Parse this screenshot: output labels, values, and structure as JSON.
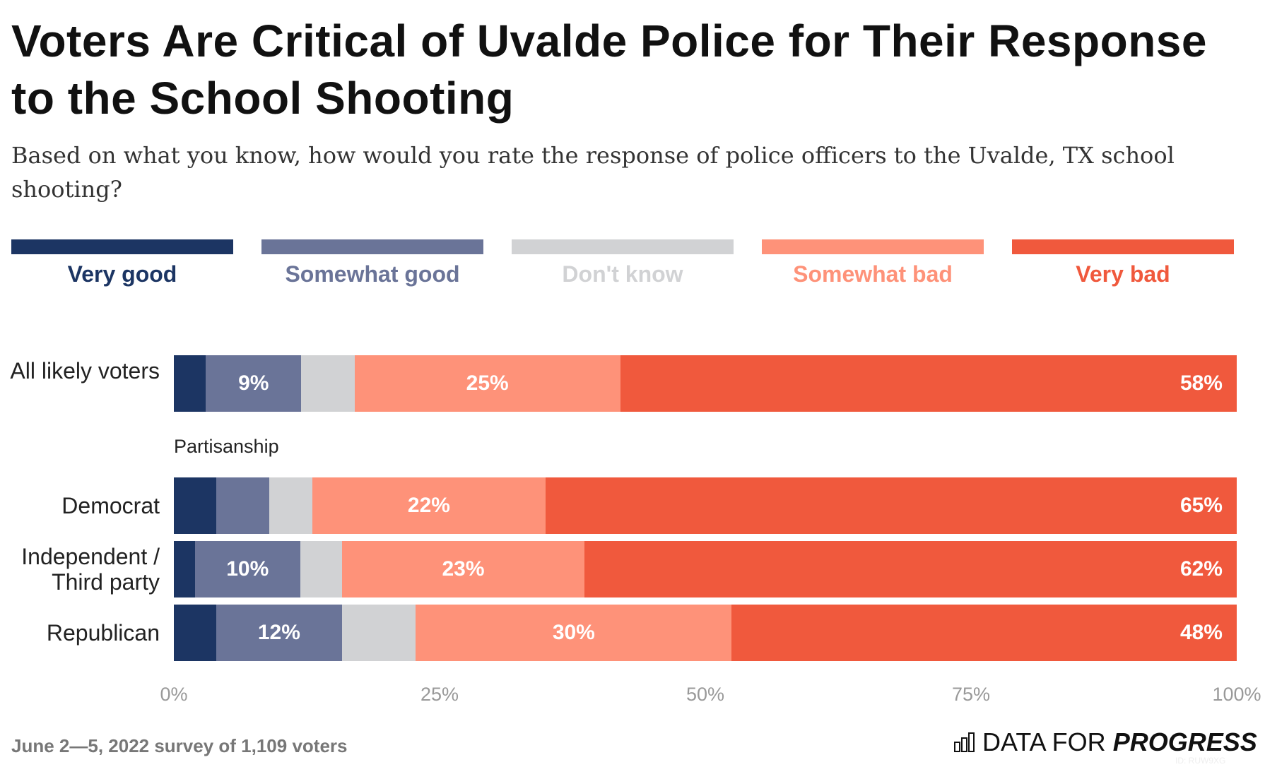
{
  "title": "Voters Are Critical of Uvalde Police for Their Response to the School Shooting",
  "subtitle": "Based on what you know, how would you rate the response of police officers to the Uvalde, TX school shooting?",
  "chart_data": {
    "type": "bar",
    "orientation": "horizontal-stacked-100",
    "series": [
      {
        "name": "Very good",
        "color": "#1c3563"
      },
      {
        "name": "Somewhat good",
        "color": "#6a7498"
      },
      {
        "name": "Don't know",
        "color": "#d1d2d4"
      },
      {
        "name": "Somewhat bad",
        "color": "#fe9279"
      },
      {
        "name": "Very bad",
        "color": "#f0593d"
      }
    ],
    "group_label": "Partisanship",
    "rows": [
      {
        "category": "All likely voters",
        "values": [
          3,
          9,
          5,
          25,
          58
        ],
        "labels": [
          null,
          "9%",
          null,
          "25%",
          "58%"
        ]
      },
      {
        "category": "Democrat",
        "values": [
          4,
          5,
          4,
          22,
          65
        ],
        "labels": [
          null,
          null,
          null,
          "22%",
          "65%"
        ]
      },
      {
        "category": "Independent / Third party",
        "values": [
          2,
          10,
          4,
          23,
          62
        ],
        "labels": [
          null,
          "10%",
          null,
          "23%",
          "62%"
        ]
      },
      {
        "category": "Republican",
        "values": [
          4,
          12,
          7,
          30,
          48
        ],
        "labels": [
          null,
          "12%",
          null,
          "30%",
          "48%"
        ]
      }
    ],
    "xlim": [
      0,
      100
    ],
    "x_ticks": [
      "0%",
      "25%",
      "50%",
      "75%",
      "100%"
    ],
    "legend_placement": "top",
    "grid": false
  },
  "footer": "June 2—5, 2022 survey of 1,109 voters",
  "logo": {
    "light": "DATA FOR",
    "bold": "PROGRESS"
  },
  "watermark": "ID: RUW9XG"
}
